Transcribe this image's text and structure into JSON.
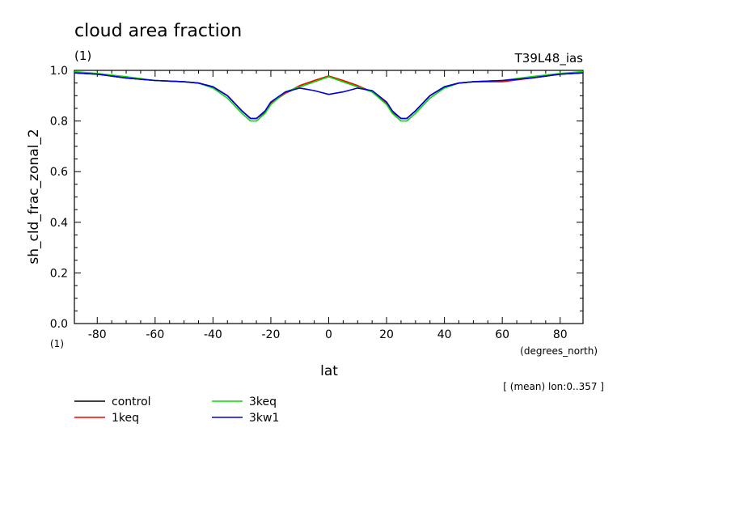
{
  "title": "cloud area fraction",
  "title_units": "(1)",
  "experiment": "T39L48_ias",
  "subtitle_note": "[ (mean) lon:0..357 ]",
  "x_units_left": "(1)",
  "x_units_right": "(degrees_north)",
  "chart_data": {
    "type": "line",
    "title": "cloud area fraction",
    "xlabel": "lat",
    "ylabel": "sh_cld_frac_zonal_2",
    "xlim": [
      -87.9,
      87.9
    ],
    "ylim": [
      0.0,
      1.0
    ],
    "x_ticks": [
      -80,
      -60,
      -40,
      -20,
      0,
      20,
      40,
      60,
      80
    ],
    "x_tick_labels": [
      "-80",
      "-60",
      "-40",
      "-20",
      "0",
      "20",
      "40",
      "60",
      "80"
    ],
    "y_ticks": [
      0.0,
      0.2,
      0.4,
      0.6,
      0.8,
      1.0
    ],
    "y_tick_labels": [
      "0.0",
      "0.2",
      "0.4",
      "0.6",
      "0.8",
      "1.0"
    ],
    "grid": false,
    "legend_position": "bottom-left",
    "x": [
      -87.9,
      -80,
      -70,
      -60,
      -50,
      -45,
      -40,
      -35,
      -30,
      -27,
      -25,
      -22,
      -20,
      -15,
      -10,
      -5,
      0,
      5,
      10,
      15,
      20,
      22,
      25,
      27,
      30,
      35,
      40,
      45,
      50,
      60,
      70,
      80,
      87.9
    ],
    "series": [
      {
        "name": "control",
        "color": "#000000",
        "values": [
          0.99,
          0.985,
          0.97,
          0.96,
          0.955,
          0.95,
          0.935,
          0.9,
          0.84,
          0.81,
          0.81,
          0.835,
          0.87,
          0.91,
          0.935,
          0.955,
          0.975,
          0.955,
          0.935,
          0.915,
          0.87,
          0.835,
          0.81,
          0.81,
          0.84,
          0.9,
          0.935,
          0.95,
          0.955,
          0.96,
          0.97,
          0.985,
          0.99
        ]
      },
      {
        "name": "1keq",
        "color": "#ff0000",
        "values": [
          0.99,
          0.985,
          0.97,
          0.96,
          0.955,
          0.95,
          0.935,
          0.9,
          0.84,
          0.81,
          0.81,
          0.835,
          0.87,
          0.91,
          0.94,
          0.96,
          0.978,
          0.96,
          0.94,
          0.915,
          0.87,
          0.835,
          0.81,
          0.81,
          0.84,
          0.9,
          0.935,
          0.95,
          0.955,
          0.955,
          0.97,
          0.985,
          0.99
        ]
      },
      {
        "name": "3keq",
        "color": "#00dd00",
        "values": [
          0.995,
          0.988,
          0.975,
          0.96,
          0.955,
          0.95,
          0.93,
          0.89,
          0.83,
          0.8,
          0.8,
          0.83,
          0.865,
          0.915,
          0.935,
          0.955,
          0.975,
          0.955,
          0.935,
          0.915,
          0.865,
          0.83,
          0.8,
          0.8,
          0.83,
          0.89,
          0.93,
          0.95,
          0.955,
          0.96,
          0.975,
          0.988,
          0.995
        ]
      },
      {
        "name": "3kw1",
        "color": "#0000dd",
        "values": [
          0.99,
          0.985,
          0.97,
          0.96,
          0.955,
          0.95,
          0.935,
          0.9,
          0.84,
          0.81,
          0.81,
          0.84,
          0.875,
          0.915,
          0.93,
          0.92,
          0.905,
          0.915,
          0.93,
          0.92,
          0.875,
          0.84,
          0.81,
          0.81,
          0.84,
          0.9,
          0.935,
          0.95,
          0.955,
          0.96,
          0.97,
          0.985,
          0.99
        ]
      }
    ]
  }
}
